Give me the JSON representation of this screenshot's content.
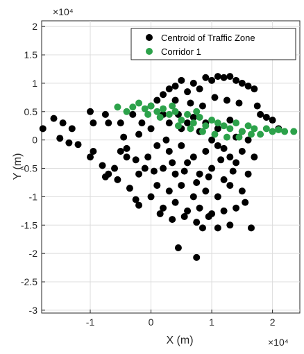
{
  "chart_data": {
    "type": "scatter",
    "xlabel": "X (m)",
    "ylabel": "Y (m)",
    "x_exponent": "×10⁴",
    "y_exponent": "×10⁴",
    "xlim": [
      -1.8,
      2.45
    ],
    "ylim": [
      -3.05,
      2.1
    ],
    "x_ticks": [
      -1,
      0,
      1,
      2
    ],
    "x_tick_labels": [
      "-1",
      "0",
      "1",
      "2"
    ],
    "y_ticks": [
      -3,
      -2.5,
      -2,
      -1.5,
      -1,
      -0.5,
      0,
      0.5,
      1,
      1.5,
      2
    ],
    "y_tick_labels": [
      "-3",
      "-2.5",
      "-2",
      "-1.5",
      "-1",
      "-0.5",
      "0",
      "0.5",
      "1",
      "1.5",
      "2"
    ],
    "grid": true,
    "legend_position": "top-right",
    "colors": {
      "series1": "#000000",
      "series2": "#2ca24a"
    },
    "series": [
      {
        "name": "Centroid of Traffic Zone",
        "points": [
          [
            -1.78,
            0.2
          ],
          [
            -1.6,
            0.38
          ],
          [
            -1.5,
            0.03
          ],
          [
            -1.45,
            0.3
          ],
          [
            -1.35,
            -0.05
          ],
          [
            -1.3,
            0.2
          ],
          [
            -1.2,
            -0.08
          ],
          [
            -1.0,
            0.5
          ],
          [
            -0.95,
            0.3
          ],
          [
            -1.0,
            -0.3
          ],
          [
            -0.95,
            -0.2
          ],
          [
            -0.75,
            0.45
          ],
          [
            -0.7,
            0.3
          ],
          [
            -0.8,
            -0.45
          ],
          [
            -0.7,
            -0.6
          ],
          [
            -0.6,
            -0.5
          ],
          [
            -0.55,
            -0.7
          ],
          [
            -0.75,
            -0.65
          ],
          [
            -0.5,
            0.3
          ],
          [
            -0.45,
            0.05
          ],
          [
            -0.4,
            -0.3
          ],
          [
            -0.35,
            -0.85
          ],
          [
            -0.25,
            -1.05
          ],
          [
            -0.2,
            -1.15
          ],
          [
            -0.3,
            0.45
          ],
          [
            -0.2,
            0.1
          ],
          [
            -0.15,
            0.3
          ],
          [
            -0.2,
            -0.6
          ],
          [
            -0.4,
            -0.15
          ],
          [
            -0.5,
            -0.2
          ],
          [
            -0.1,
            -0.5
          ],
          [
            0.0,
            0.6
          ],
          [
            0.1,
            0.7
          ],
          [
            0.2,
            0.8
          ],
          [
            0.3,
            0.9
          ],
          [
            0.4,
            0.95
          ],
          [
            0.5,
            1.05
          ],
          [
            0.6,
            0.85
          ],
          [
            0.7,
            1.0
          ],
          [
            0.8,
            0.9
          ],
          [
            0.9,
            1.1
          ],
          [
            1.0,
            1.05
          ],
          [
            1.1,
            1.12
          ],
          [
            1.2,
            1.1
          ],
          [
            1.3,
            1.12
          ],
          [
            1.4,
            1.05
          ],
          [
            1.5,
            1.0
          ],
          [
            1.6,
            0.95
          ],
          [
            1.7,
            0.9
          ],
          [
            1.75,
            0.6
          ],
          [
            1.8,
            0.45
          ],
          [
            1.9,
            0.4
          ],
          [
            2.0,
            0.35
          ],
          [
            2.1,
            0.2
          ],
          [
            0.3,
            0.3
          ],
          [
            0.5,
            0.2
          ],
          [
            0.7,
            0.4
          ],
          [
            0.9,
            0.3
          ],
          [
            1.1,
            0.2
          ],
          [
            1.3,
            0.35
          ],
          [
            1.5,
            0.15
          ],
          [
            0.1,
            -0.1
          ],
          [
            0.3,
            -0.2
          ],
          [
            0.5,
            -0.1
          ],
          [
            0.7,
            -0.3
          ],
          [
            0.9,
            -0.2
          ],
          [
            1.1,
            -0.1
          ],
          [
            1.3,
            -0.3
          ],
          [
            1.5,
            -0.2
          ],
          [
            0.2,
            -0.5
          ],
          [
            0.4,
            -0.6
          ],
          [
            0.6,
            -0.4
          ],
          [
            0.8,
            -0.6
          ],
          [
            1.0,
            -0.5
          ],
          [
            1.2,
            -0.7
          ],
          [
            1.4,
            -0.4
          ],
          [
            0.1,
            -0.8
          ],
          [
            0.3,
            -0.9
          ],
          [
            0.5,
            -0.8
          ],
          [
            0.7,
            -1.0
          ],
          [
            0.9,
            -0.9
          ],
          [
            1.1,
            -1.0
          ],
          [
            1.3,
            -0.8
          ],
          [
            1.5,
            -0.9
          ],
          [
            0.2,
            -1.2
          ],
          [
            0.4,
            -1.1
          ],
          [
            0.6,
            -1.25
          ],
          [
            0.8,
            -1.2
          ],
          [
            1.0,
            -1.3
          ],
          [
            1.2,
            -1.25
          ],
          [
            1.4,
            -1.2
          ],
          [
            0.0,
            -1.0
          ],
          [
            0.15,
            -1.3
          ],
          [
            0.35,
            -1.4
          ],
          [
            0.55,
            -1.35
          ],
          [
            0.75,
            -1.45
          ],
          [
            0.85,
            -1.55
          ],
          [
            0.95,
            -1.35
          ],
          [
            1.1,
            -1.55
          ],
          [
            1.3,
            -1.5
          ],
          [
            1.65,
            -1.55
          ],
          [
            1.55,
            -1.1
          ],
          [
            1.6,
            -0.6
          ],
          [
            1.6,
            0.0
          ],
          [
            1.7,
            -0.3
          ],
          [
            0.45,
            -1.9
          ],
          [
            0.75,
            -2.07
          ],
          [
            0.0,
            0.2
          ],
          [
            -0.05,
            -0.3
          ],
          [
            0.25,
            0.0
          ],
          [
            0.45,
            0.45
          ],
          [
            0.65,
            0.65
          ],
          [
            0.85,
            0.6
          ],
          [
            1.05,
            0.75
          ],
          [
            1.25,
            0.7
          ],
          [
            1.45,
            0.65
          ],
          [
            0.35,
            -0.4
          ],
          [
            0.55,
            -0.55
          ],
          [
            0.75,
            -0.75
          ],
          [
            0.95,
            -0.65
          ],
          [
            1.15,
            -0.35
          ],
          [
            1.35,
            -0.55
          ],
          [
            0.2,
            0.45
          ],
          [
            0.05,
            -0.55
          ],
          [
            -0.25,
            -0.35
          ],
          [
            0.4,
            0.7
          ],
          [
            0.6,
            0.3
          ],
          [
            0.8,
            0.15
          ],
          [
            1.0,
            0.0
          ],
          [
            1.2,
            -0.15
          ],
          [
            1.4,
            0.05
          ]
        ]
      },
      {
        "name": "Corridor 1",
        "points": [
          [
            -0.55,
            0.58
          ],
          [
            -0.4,
            0.5
          ],
          [
            -0.3,
            0.58
          ],
          [
            -0.2,
            0.65
          ],
          [
            -0.1,
            0.55
          ],
          [
            0.0,
            0.6
          ],
          [
            0.1,
            0.5
          ],
          [
            0.2,
            0.55
          ],
          [
            0.3,
            0.45
          ],
          [
            0.4,
            0.5
          ],
          [
            0.5,
            0.35
          ],
          [
            0.6,
            0.45
          ],
          [
            0.7,
            0.3
          ],
          [
            0.8,
            0.4
          ],
          [
            0.9,
            0.25
          ],
          [
            1.0,
            0.35
          ],
          [
            1.1,
            0.3
          ],
          [
            1.2,
            0.25
          ],
          [
            1.3,
            0.2
          ],
          [
            1.4,
            0.3
          ],
          [
            1.5,
            0.15
          ],
          [
            1.6,
            0.25
          ],
          [
            1.7,
            0.2
          ],
          [
            1.8,
            0.1
          ],
          [
            1.9,
            0.2
          ],
          [
            2.0,
            0.15
          ],
          [
            2.1,
            0.18
          ],
          [
            2.2,
            0.15
          ],
          [
            2.35,
            0.15
          ],
          [
            0.45,
            0.25
          ],
          [
            0.65,
            0.2
          ],
          [
            0.85,
            0.15
          ],
          [
            1.05,
            0.1
          ],
          [
            1.25,
            0.05
          ],
          [
            1.45,
            0.05
          ],
          [
            1.65,
            0.1
          ],
          [
            0.15,
            0.4
          ],
          [
            -0.05,
            0.45
          ],
          [
            0.35,
            0.6
          ],
          [
            0.75,
            0.5
          ]
        ]
      }
    ]
  }
}
